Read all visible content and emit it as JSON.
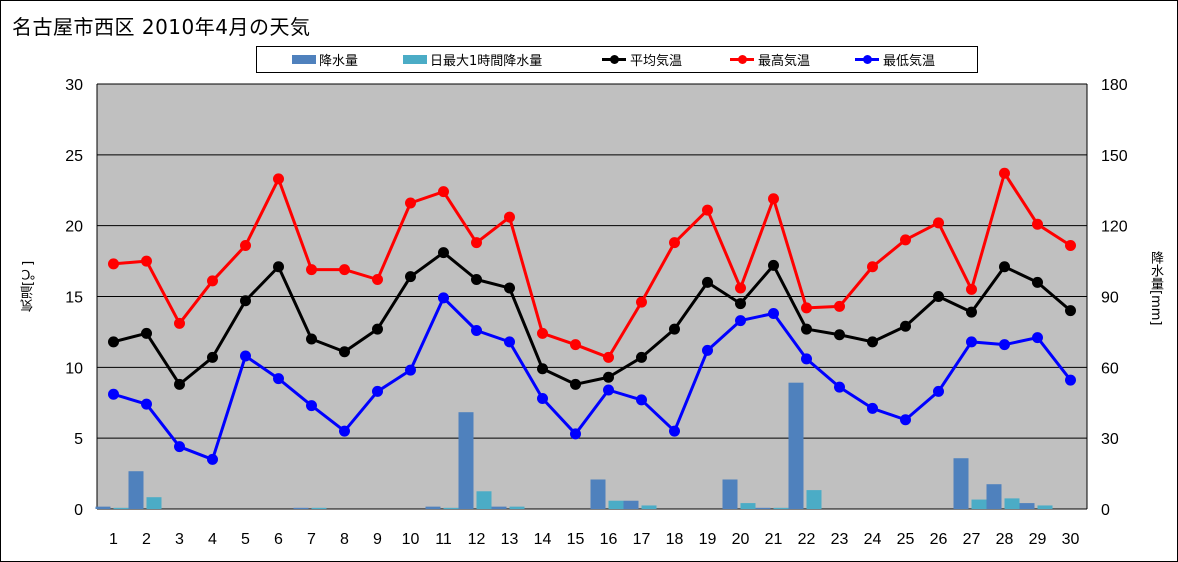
{
  "title": "名古屋市西区  2010年4月の天気",
  "legend": [
    "降水量",
    "日最大1時間降水量",
    "平均気温",
    "最高気温",
    "最低気温"
  ],
  "colors": {
    "降水量": "#4F81BD",
    "日最大1時間降水量": "#4BACC6",
    "平均気温": "#000000",
    "最高気温": "#FF0000",
    "最低気温": "#0000FF",
    "plot_background": "#C0C0C0"
  },
  "chart_data": {
    "type": "bar+line",
    "title": "名古屋市西区  2010年4月の天気",
    "ylabel": "気温[℃]",
    "y2label": "降水量[mm]",
    "ylim": [
      0,
      30
    ],
    "y2lim": [
      0,
      180
    ],
    "yticks": [
      0,
      5,
      10,
      15,
      20,
      25,
      30
    ],
    "y2ticks": [
      0,
      30,
      60,
      90,
      120,
      150,
      180
    ],
    "grid": true,
    "legend_position": "top",
    "categories": [
      "1",
      "2",
      "3",
      "4",
      "5",
      "6",
      "7",
      "8",
      "9",
      "10",
      "11",
      "12",
      "13",
      "14",
      "15",
      "16",
      "17",
      "18",
      "19",
      "20",
      "21",
      "22",
      "23",
      "24",
      "25",
      "26",
      "27",
      "28",
      "29",
      "30"
    ],
    "series": [
      {
        "name": "降水量",
        "type": "bar",
        "axis": "right",
        "values": [
          1,
          16,
          0,
          0,
          0,
          0,
          0.5,
          0,
          0,
          0,
          1,
          41,
          1,
          0,
          0,
          12.5,
          3.5,
          0,
          0,
          12.5,
          0.5,
          53.5,
          0,
          0,
          0,
          0,
          21.5,
          10.5,
          2.5,
          0
        ]
      },
      {
        "name": "日最大1時間降水量",
        "type": "bar",
        "axis": "right",
        "values": [
          0.5,
          5,
          0,
          0,
          0,
          0,
          0.5,
          0,
          0,
          0,
          0.5,
          7.5,
          1,
          0,
          0,
          3.5,
          1.5,
          0,
          0,
          2.5,
          0.5,
          8,
          0,
          0,
          0,
          0,
          4,
          4.5,
          1.5,
          0
        ]
      },
      {
        "name": "平均気温",
        "type": "line",
        "axis": "left",
        "values": [
          11.8,
          12.4,
          8.8,
          10.7,
          14.7,
          17.1,
          12.0,
          11.1,
          12.7,
          16.4,
          18.1,
          16.2,
          15.6,
          9.9,
          8.8,
          9.3,
          10.7,
          12.7,
          16.0,
          14.5,
          17.2,
          12.7,
          12.3,
          11.8,
          12.9,
          15.0,
          13.9,
          17.1,
          16.0,
          14.0
        ]
      },
      {
        "name": "最高気温",
        "type": "line",
        "axis": "left",
        "values": [
          17.3,
          17.5,
          13.1,
          16.1,
          18.6,
          23.3,
          16.9,
          16.9,
          16.2,
          21.6,
          22.4,
          18.8,
          20.6,
          12.4,
          11.6,
          10.7,
          14.6,
          18.8,
          21.1,
          15.6,
          21.9,
          14.2,
          14.3,
          17.1,
          19.0,
          20.2,
          15.5,
          23.7,
          20.1,
          18.6
        ]
      },
      {
        "name": "最低気温",
        "type": "line",
        "axis": "left",
        "values": [
          8.1,
          7.4,
          4.4,
          3.5,
          10.8,
          9.2,
          7.3,
          5.5,
          8.3,
          9.8,
          14.9,
          12.6,
          11.8,
          7.8,
          5.3,
          8.4,
          7.7,
          5.5,
          11.2,
          13.3,
          13.8,
          10.6,
          8.6,
          7.1,
          6.3,
          8.3,
          11.8,
          11.6,
          12.1,
          9.1
        ]
      }
    ]
  }
}
